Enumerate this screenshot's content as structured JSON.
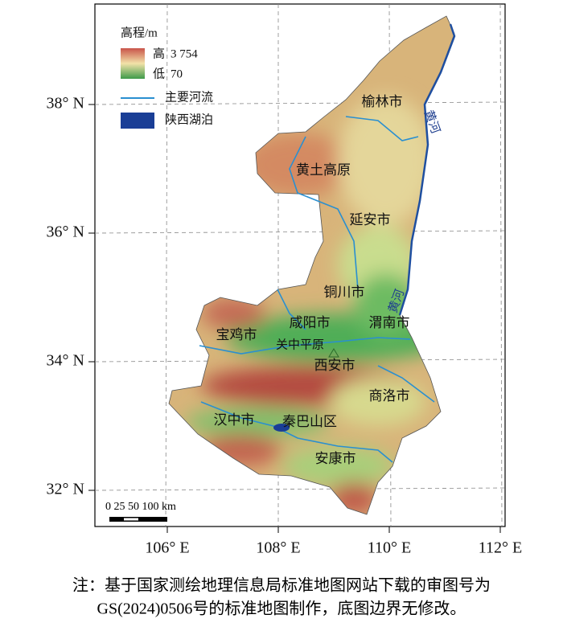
{
  "map": {
    "lat_labels": [
      "38° N",
      "36° N",
      "34° N",
      "32° N"
    ],
    "lon_labels": [
      "106° E",
      "108° E",
      "110° E",
      "112° E"
    ],
    "legend": {
      "title": "高程/m",
      "high": "高",
      "high_value": "3 754",
      "low": "低",
      "low_value": "70",
      "river": "主要河流",
      "lake": "陕西湖泊"
    },
    "scale": "0 25 50 100 km",
    "places": [
      "榆林市",
      "黄河",
      "黄土高原",
      "延安市",
      "铜川市",
      "黄河",
      "咸阳市",
      "渭南市",
      "宝鸡市",
      "关中平原",
      "西安市",
      "商洛市",
      "汉中市",
      "秦巴山区",
      "安康市"
    ]
  },
  "note": [
    "注：基于国家测绘地理信息局标准地图网站下载的审图号为",
    "GS(2024)0506号的标准地图制作，底图边界无修改。"
  ]
}
